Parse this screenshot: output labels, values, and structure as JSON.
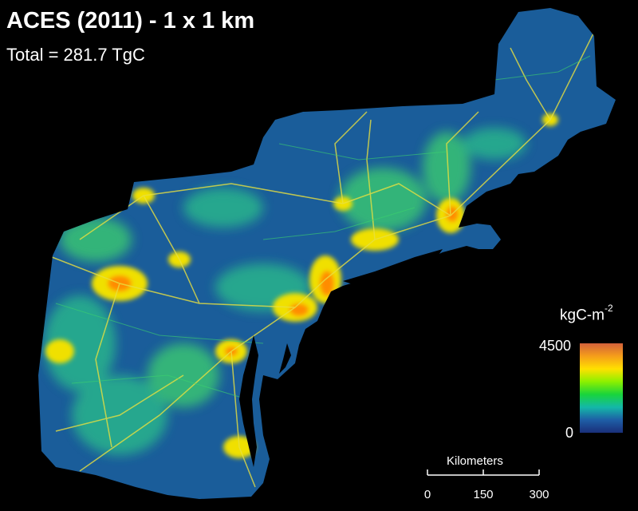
{
  "title": "ACES (2011) - 1 x 1 km",
  "subtitle": "Total = 281.7 TgC",
  "legend": {
    "unit_base": "kgC-m",
    "unit_exp": "-2",
    "max": "4500",
    "min": "0",
    "colors": [
      "#d2603a",
      "#f59e1a",
      "#ffe000",
      "#8cf000",
      "#19d43c",
      "#14b8a8",
      "#1e5ea6",
      "#1a2f7a"
    ]
  },
  "scale_bar": {
    "title": "Kilometers",
    "ticks": [
      "0",
      "150",
      "300"
    ]
  },
  "map_colors": {
    "background": "#000000",
    "land": "#1a5d9a",
    "high": "#ff8c00",
    "mid": "#f0e000",
    "low": "#3cd26e"
  }
}
